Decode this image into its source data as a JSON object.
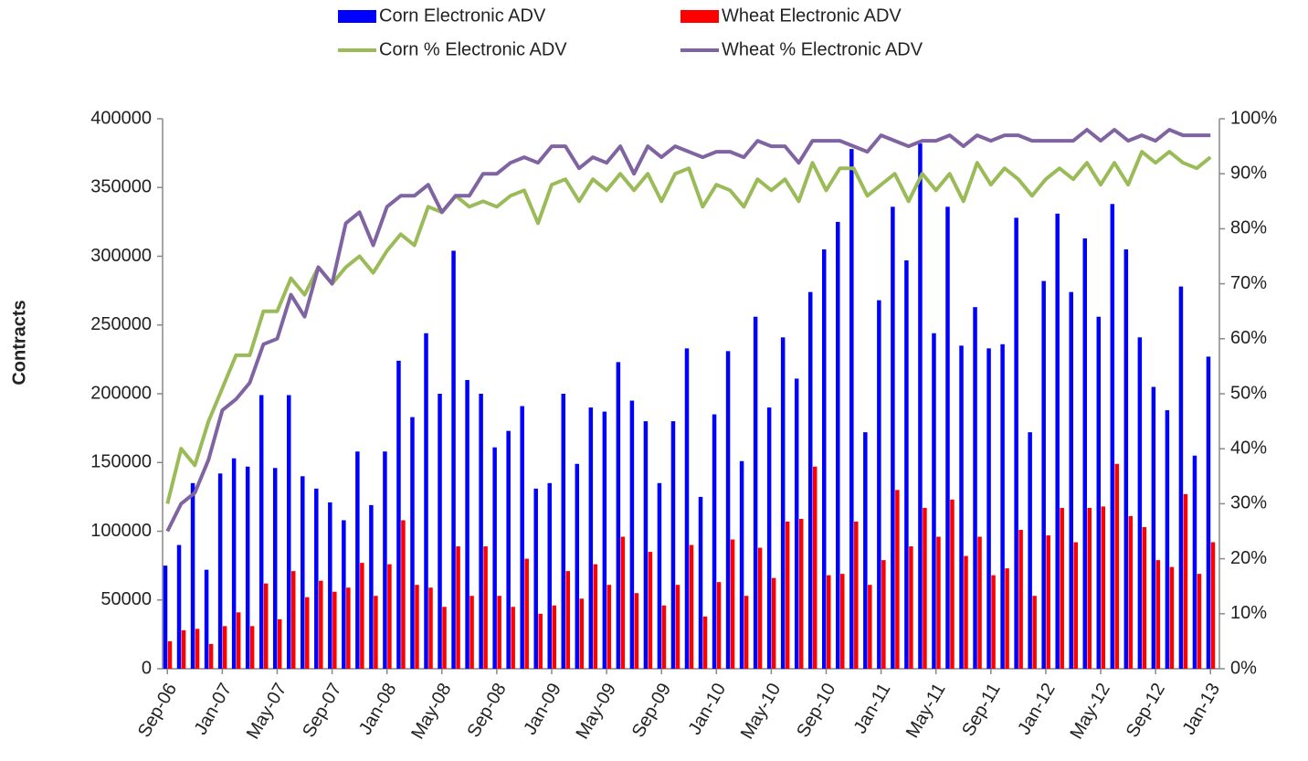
{
  "chart_data": {
    "type": "bar",
    "y_label": "Contracts",
    "categories": [
      "Sep-06",
      null,
      null,
      null,
      "Jan-07",
      null,
      null,
      null,
      "May-07",
      null,
      null,
      null,
      "Sep-07",
      null,
      null,
      null,
      "Jan-08",
      null,
      null,
      null,
      "May-08",
      null,
      null,
      null,
      "Sep-08",
      null,
      null,
      null,
      "Jan-09",
      null,
      null,
      null,
      "May-09",
      null,
      null,
      null,
      "Sep-09",
      null,
      null,
      null,
      "Jan-10",
      null,
      null,
      null,
      "May-10",
      null,
      null,
      null,
      "Sep-10",
      null,
      null,
      null,
      "Jan-11",
      null,
      null,
      null,
      "May-11",
      null,
      null,
      null,
      "Sep-11",
      null,
      null,
      null,
      "Jan-12",
      null,
      null,
      null,
      "May-12",
      null,
      null,
      null,
      "Sep-12",
      null,
      null,
      null,
      "Jan-13"
    ],
    "series": [
      {
        "name": "Corn Electronic ADV",
        "type": "bar",
        "color": "#0000ff",
        "values": [
          75000,
          90000,
          135000,
          72000,
          142000,
          153000,
          147000,
          199000,
          146000,
          199000,
          140000,
          131000,
          121000,
          108000,
          158000,
          119000,
          158000,
          224000,
          183000,
          244000,
          200000,
          304000,
          210000,
          200000,
          161000,
          173000,
          191000,
          131000,
          135000,
          200000,
          149000,
          190000,
          187000,
          223000,
          195000,
          180000,
          135000,
          180000,
          233000,
          125000,
          185000,
          231000,
          151000,
          256000,
          190000,
          241000,
          211000,
          274000,
          305000,
          325000,
          378000,
          172000,
          268000,
          336000,
          297000,
          382000,
          244000,
          336000,
          235000,
          263000,
          233000,
          236000,
          328000,
          172000,
          282000,
          331000,
          274000,
          313000,
          256000,
          338000,
          305000,
          241000,
          205000,
          188000,
          278000,
          155000,
          227000
        ]
      },
      {
        "name": "Wheat Electronic ADV",
        "type": "bar",
        "color": "#ff0000",
        "values": [
          20000,
          28000,
          29000,
          18000,
          31000,
          41000,
          31000,
          62000,
          36000,
          71000,
          52000,
          64000,
          56000,
          59000,
          77000,
          53000,
          76000,
          108000,
          61000,
          59000,
          45000,
          89000,
          53000,
          89000,
          53000,
          45000,
          80000,
          40000,
          46000,
          71000,
          51000,
          76000,
          61000,
          96000,
          55000,
          85000,
          46000,
          61000,
          90000,
          38000,
          63000,
          94000,
          53000,
          88000,
          66000,
          107000,
          109000,
          147000,
          68000,
          69000,
          107000,
          61000,
          79000,
          130000,
          89000,
          117000,
          96000,
          123000,
          82000,
          96000,
          68000,
          73000,
          101000,
          53000,
          97000,
          117000,
          92000,
          117000,
          118000,
          149000,
          111000,
          103000,
          79000,
          74000,
          127000,
          69000,
          92000
        ]
      },
      {
        "name": "Corn % Electronic ADV",
        "type": "line",
        "axis": "y2",
        "color": "#9bbb59",
        "values": [
          30,
          40,
          37,
          45,
          51,
          57,
          57,
          65,
          65,
          71,
          68,
          73,
          70,
          73,
          75,
          72,
          76,
          79,
          77,
          84,
          83,
          86,
          84,
          85,
          84,
          86,
          87,
          81,
          88,
          89,
          85,
          89,
          87,
          90,
          87,
          90,
          85,
          90,
          91,
          84,
          88,
          87,
          84,
          89,
          87,
          89,
          85,
          92,
          87,
          91,
          91,
          86,
          88,
          90,
          85,
          90,
          87,
          90,
          85,
          92,
          88,
          91,
          89,
          86,
          89,
          91,
          89,
          92,
          88,
          92,
          88,
          94,
          92,
          94,
          92,
          91,
          93
        ]
      },
      {
        "name": "Wheat % Electronic ADV",
        "type": "line",
        "axis": "y2",
        "color": "#8064a2",
        "values": [
          25,
          30,
          32,
          38,
          47,
          49,
          52,
          59,
          60,
          68,
          64,
          73,
          70,
          81,
          83,
          77,
          84,
          86,
          86,
          88,
          83,
          86,
          86,
          90,
          90,
          92,
          93,
          92,
          95,
          95,
          91,
          93,
          92,
          95,
          90,
          95,
          93,
          95,
          94,
          93,
          94,
          94,
          93,
          96,
          95,
          95,
          92,
          96,
          96,
          96,
          95,
          94,
          97,
          96,
          95,
          96,
          96,
          97,
          95,
          97,
          96,
          97,
          97,
          96,
          96,
          96,
          96,
          98,
          96,
          98,
          96,
          97,
          96,
          98,
          97,
          97,
          97
        ]
      }
    ],
    "ylim": [
      0,
      400000
    ],
    "yticks": [
      0,
      50000,
      100000,
      150000,
      200000,
      250000,
      300000,
      350000,
      400000
    ],
    "y2lim": [
      0,
      100
    ],
    "y2ticks": [
      {
        "value": 0,
        "label": "0%"
      },
      {
        "value": 10,
        "label": "10%"
      },
      {
        "value": 20,
        "label": "20%"
      },
      {
        "value": 30,
        "label": "30%"
      },
      {
        "value": 40,
        "label": "40%"
      },
      {
        "value": 50,
        "label": "50%"
      },
      {
        "value": 60,
        "label": "60%"
      },
      {
        "value": 70,
        "label": "70%"
      },
      {
        "value": 80,
        "label": "80%"
      },
      {
        "value": 90,
        "label": "90%"
      },
      {
        "value": 100,
        "label": "100%"
      }
    ],
    "legend": "top",
    "grid": false
  }
}
